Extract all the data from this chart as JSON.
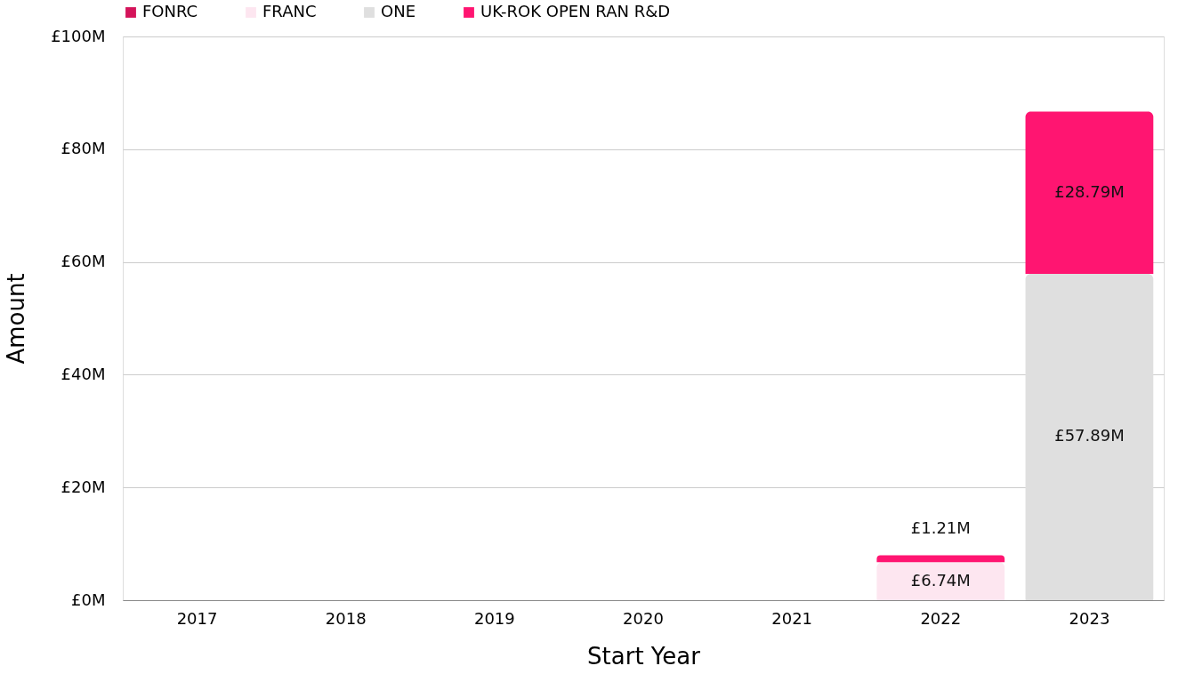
{
  "chart_data": {
    "type": "bar",
    "stacked": true,
    "xlabel": "Start Year",
    "ylabel": "Amount",
    "categories": [
      "2017",
      "2018",
      "2019",
      "2020",
      "2021",
      "2022",
      "2023"
    ],
    "series": [
      {
        "name": "FRANC",
        "color": "#fde6f0",
        "values": [
          null,
          null,
          null,
          null,
          null,
          6.74,
          null
        ],
        "value_labels": [
          null,
          null,
          null,
          null,
          null,
          "£6.74M",
          null
        ]
      },
      {
        "name": "ONE",
        "color": "#dfdfdf",
        "values": [
          null,
          null,
          null,
          null,
          null,
          null,
          57.89
        ],
        "value_labels": [
          null,
          null,
          null,
          null,
          null,
          null,
          "£57.89M"
        ]
      },
      {
        "name": "UK-ROK OPEN RAN R&D",
        "color": "#ff1571",
        "values": [
          null,
          null,
          null,
          null,
          null,
          1.21,
          28.79
        ],
        "value_labels": [
          null,
          null,
          null,
          null,
          null,
          "£1.21M",
          "£28.79M"
        ]
      },
      {
        "name": "FONRC",
        "color": "#d4145a",
        "values": [
          null,
          null,
          null,
          null,
          null,
          null,
          null
        ]
      }
    ],
    "ylim": [
      0,
      100
    ],
    "yticks": [
      {
        "value": 0,
        "label": "£0M"
      },
      {
        "value": 20,
        "label": "£20M"
      },
      {
        "value": 40,
        "label": "£40M"
      },
      {
        "value": 60,
        "label": "£60M"
      },
      {
        "value": 80,
        "label": "£80M"
      },
      {
        "value": 100,
        "label": "£100M"
      }
    ],
    "grid": "y",
    "legend": "top"
  }
}
